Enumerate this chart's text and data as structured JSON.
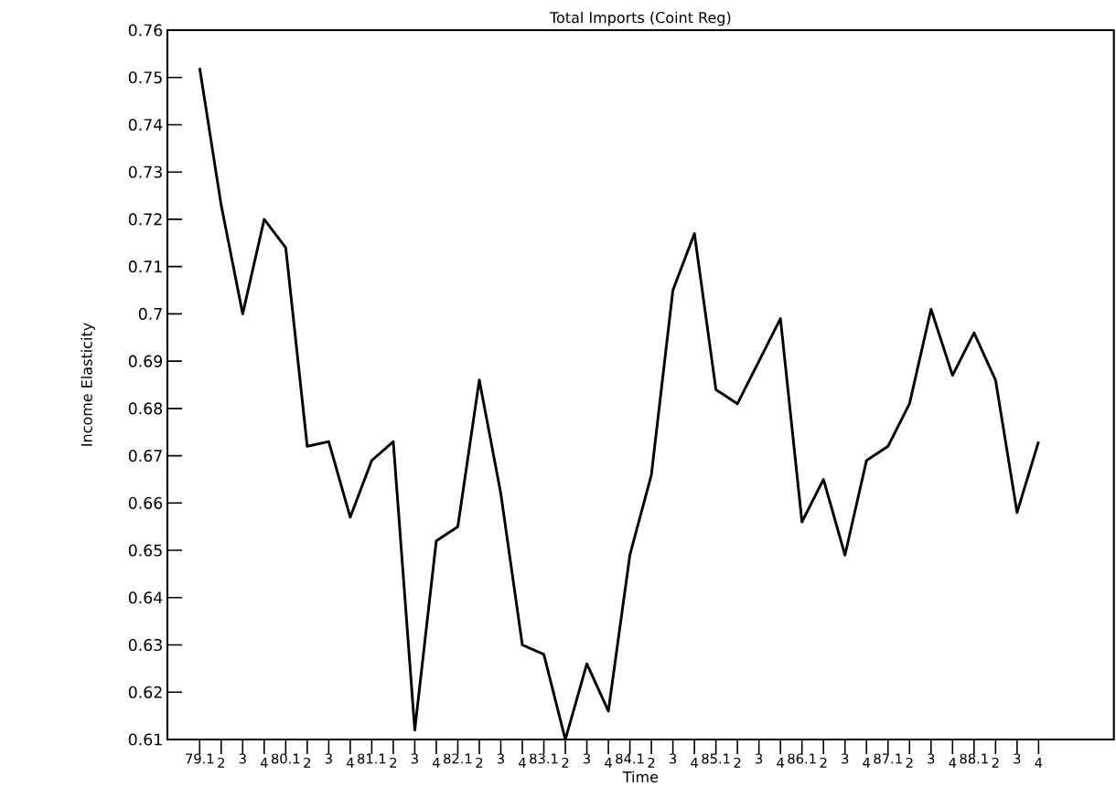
{
  "chart_data": {
    "type": "line",
    "title": "Total Imports (Coint Reg)",
    "xlabel": "Time",
    "ylabel": "Income Elasticity",
    "categories": [
      "79.1",
      "2",
      "3",
      "4",
      "80.1",
      "2",
      "3",
      "4",
      "81.1",
      "2",
      "3",
      "4",
      "82.1",
      "2",
      "3",
      "4",
      "83.1",
      "2",
      "3",
      "4",
      "84.1",
      "2",
      "3",
      "4",
      "85.1",
      "2",
      "3",
      "4",
      "86.1",
      "2",
      "3",
      "4",
      "87.1",
      "2",
      "3",
      "4",
      "88.1",
      "2",
      "3",
      "4"
    ],
    "values": [
      0.752,
      0.723,
      0.7,
      0.72,
      0.714,
      0.672,
      0.673,
      0.657,
      0.669,
      0.673,
      0.612,
      0.652,
      0.655,
      0.686,
      0.662,
      0.63,
      0.628,
      0.61,
      0.626,
      0.616,
      0.649,
      0.666,
      0.705,
      0.717,
      0.684,
      0.681,
      0.69,
      0.699,
      0.656,
      0.665,
      0.649,
      0.669,
      0.672,
      0.681,
      0.701,
      0.687,
      0.696,
      0.686,
      0.658,
      0.673
    ],
    "color": "#000000",
    "ylim": [
      0.61,
      0.76
    ],
    "yticks": [
      0.61,
      0.62,
      0.63,
      0.64,
      0.65,
      0.66,
      0.67,
      0.68,
      0.69,
      0.7,
      0.71,
      0.72,
      0.73,
      0.74,
      0.75,
      0.76
    ]
  }
}
